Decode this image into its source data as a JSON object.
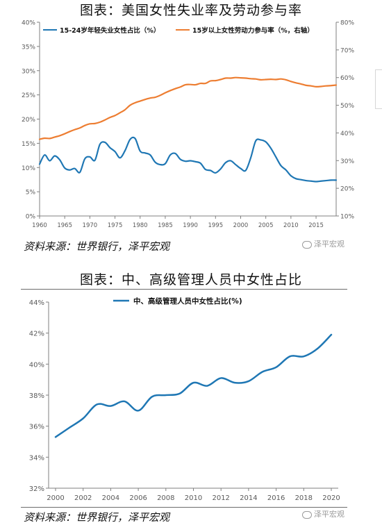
{
  "charts": [
    {
      "title": "图表：美国女性失业率及劳动参与率",
      "source": "资料来源：世界银行，泽平宏观",
      "watermark": "泽平宏观"
    },
    {
      "title": "图表：中、高级管理人员中女性占比",
      "source": "资料来源：世界银行，泽平宏观",
      "watermark": "泽平宏观"
    }
  ],
  "colors": {
    "blue": "#1f77b4",
    "orange": "#ed7d31",
    "axis": "#7f7f7f"
  },
  "chart_data": [
    {
      "type": "line",
      "title": "",
      "x": [
        1960,
        1961,
        1962,
        1963,
        1964,
        1965,
        1966,
        1967,
        1968,
        1969,
        1970,
        1971,
        1972,
        1973,
        1974,
        1975,
        1976,
        1977,
        1978,
        1979,
        1980,
        1981,
        1982,
        1983,
        1984,
        1985,
        1986,
        1987,
        1988,
        1989,
        1990,
        1991,
        1992,
        1993,
        1994,
        1995,
        1996,
        1997,
        1998,
        1999,
        2000,
        2001,
        2002,
        2003,
        2004,
        2005,
        2006,
        2007,
        2008,
        2009,
        2010,
        2011,
        2012,
        2013,
        2014,
        2015,
        2016,
        2017,
        2018,
        2019
      ],
      "xticks": [
        1960,
        1965,
        1970,
        1975,
        1980,
        1985,
        1990,
        1995,
        2000,
        2005,
        2010,
        2015
      ],
      "series": [
        {
          "name": "15-24岁年轻失业女性占比（%）",
          "axis": "left",
          "color": "#1f77b4",
          "values": [
            10.7,
            12.6,
            11.4,
            12.4,
            11.6,
            9.9,
            9.5,
            9.8,
            9.0,
            11.8,
            12.2,
            11.5,
            14.8,
            15.2,
            14.1,
            13.3,
            12.0,
            13.5,
            15.8,
            16.0,
            13.4,
            13.0,
            12.6,
            11.1,
            10.6,
            10.8,
            12.6,
            12.9,
            11.7,
            11.3,
            11.4,
            11.2,
            10.9,
            9.6,
            9.4,
            8.9,
            9.7,
            11.0,
            11.4,
            10.6,
            9.8,
            9.4,
            12.0,
            15.5,
            15.7,
            15.3,
            14.0,
            12.2,
            10.4,
            9.5,
            8.3,
            7.7,
            7.5,
            7.3,
            7.2,
            7.1,
            7.2,
            7.3,
            7.4,
            7.4
          ],
          "plot_x": [
            1960,
            1961,
            1962,
            1963,
            1964,
            1965,
            1966,
            1967,
            1968,
            1969,
            1970,
            1971,
            1972,
            1973,
            1974,
            1975,
            1976,
            1977,
            1978,
            1979,
            1980,
            1981,
            1982,
            1983,
            1984,
            1985,
            1986,
            1987,
            1988,
            1989,
            1990,
            1991,
            1992,
            1993,
            1994,
            1995,
            1996,
            1997,
            1998,
            1999,
            2000,
            2001,
            2002,
            2003,
            2004,
            2005,
            2006,
            2007,
            2008,
            2009,
            2010,
            2011,
            2012,
            2013,
            2014,
            2015,
            2016,
            2017,
            2018,
            2019
          ]
        },
        {
          "name": "15岁以上女性劳动力参与率（%，右轴）",
          "axis": "right",
          "color": "#ed7d31",
          "values": [
            37.7,
            38.1,
            38.0,
            38.5,
            39.0,
            39.7,
            40.5,
            41.2,
            41.8,
            42.7,
            43.3,
            43.4,
            43.9,
            44.7,
            45.6,
            46.3,
            47.3,
            48.4,
            50.0,
            50.9,
            51.5,
            52.1,
            52.6,
            52.9,
            53.6,
            54.5,
            55.3,
            56.0,
            56.6,
            57.4,
            57.5,
            57.4,
            57.9,
            57.9,
            58.8,
            58.9,
            59.3,
            59.8,
            59.8,
            60.0,
            59.9,
            59.8,
            59.6,
            59.5,
            59.2,
            59.3,
            59.4,
            59.3,
            59.5,
            59.2,
            58.6,
            58.1,
            57.7,
            57.2,
            57.0,
            56.7,
            56.8,
            57.0,
            57.1,
            57.3
          ],
          "plot_x": [
            1960,
            1961,
            1962,
            1963,
            1964,
            1965,
            1966,
            1967,
            1968,
            1969,
            1970,
            1971,
            1972,
            1973,
            1974,
            1975,
            1976,
            1977,
            1978,
            1979,
            1980,
            1981,
            1982,
            1983,
            1984,
            1985,
            1986,
            1987,
            1988,
            1989,
            1990,
            1991,
            1992,
            1993,
            1994,
            1995,
            1996,
            1997,
            1998,
            1999,
            2000,
            2001,
            2002,
            2003,
            2004,
            2005,
            2006,
            2007,
            2008,
            2009,
            2010,
            2011,
            2012,
            2013,
            2014,
            2015,
            2016,
            2017,
            2018,
            2019
          ]
        }
      ],
      "ylim": [
        0,
        40
      ],
      "yticks": [
        "0%",
        "5%",
        "10%",
        "15%",
        "20%",
        "25%",
        "30%",
        "35%",
        "40%"
      ],
      "y2lim": [
        10,
        80
      ],
      "y2ticks": [
        "10%",
        "20%",
        "30%",
        "40%",
        "50%",
        "60%",
        "70%",
        "80%"
      ],
      "grid": false,
      "legend": "top-left"
    },
    {
      "type": "line",
      "title": "",
      "series": [
        {
          "name": "中、高级管理人员中女性占比(%)",
          "color": "#1f77b4",
          "x": [
            2000,
            2001,
            2002,
            2003,
            2004,
            2005,
            2006,
            2007,
            2008,
            2009,
            2010,
            2011,
            2012,
            2013,
            2014,
            2015,
            2016,
            2017,
            2018,
            2019,
            2020
          ],
          "values": [
            35.3,
            35.9,
            36.5,
            37.4,
            37.3,
            37.6,
            37.0,
            37.9,
            38.0,
            38.1,
            38.8,
            38.6,
            39.1,
            38.8,
            38.9,
            39.5,
            39.8,
            40.5,
            40.5,
            41.0,
            41.9
          ]
        }
      ],
      "xticks": [
        "2000",
        "2002",
        "2004",
        "2006",
        "2008",
        "2010",
        "2012",
        "2014",
        "2016",
        "2018",
        "2020"
      ],
      "ylim": [
        32,
        44
      ],
      "yticks": [
        "32%",
        "34%",
        "36%",
        "38%",
        "40%",
        "42%",
        "44%"
      ],
      "grid": false,
      "legend": "top-center"
    }
  ]
}
